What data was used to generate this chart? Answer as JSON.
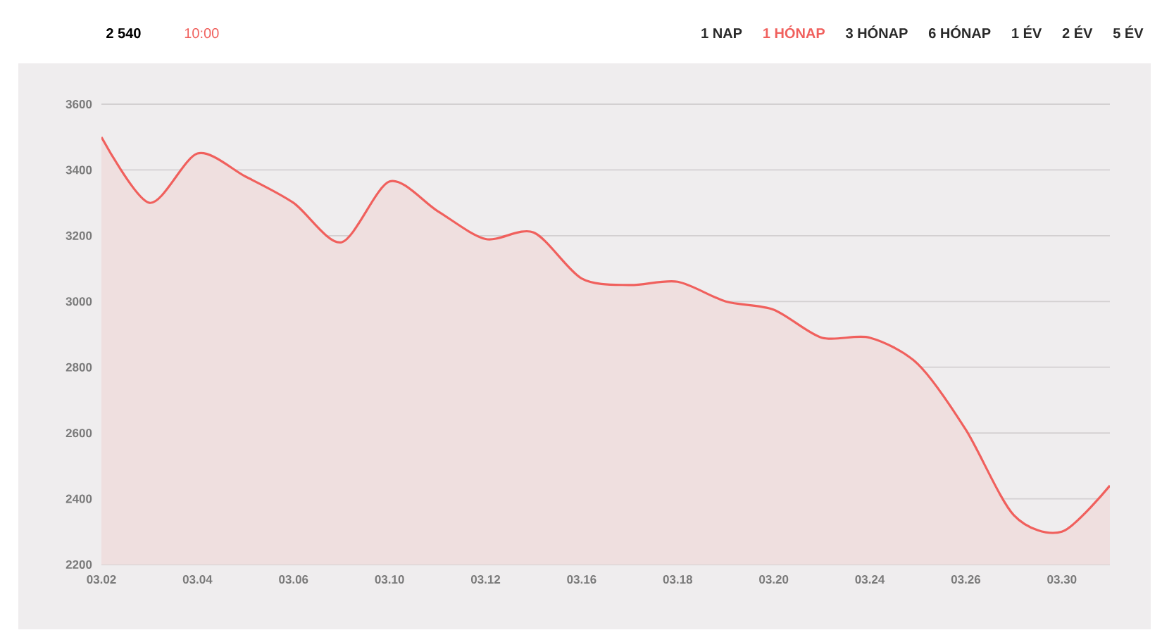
{
  "chart_data": {
    "type": "area",
    "categories": [
      "03.02",
      null,
      "03.04",
      null,
      "03.06",
      null,
      "03.10",
      null,
      "03.12",
      null,
      "03.16",
      null,
      "03.18",
      null,
      "03.20",
      null,
      "03.24",
      null,
      "03.26",
      null,
      "03.30",
      null
    ],
    "values": [
      3500,
      3300,
      3450,
      3380,
      3300,
      3180,
      3365,
      3275,
      3190,
      3210,
      3070,
      3050,
      3060,
      3000,
      2975,
      2890,
      2890,
      2810,
      2610,
      2350,
      2300,
      2440
    ],
    "color": "#f0605d",
    "ylim": [
      2200,
      3600
    ],
    "yticks": [
      2200,
      2400,
      2600,
      2800,
      3000,
      3200,
      3400,
      3600
    ],
    "grid": "y",
    "annotations": [
      "2 540",
      "10:00",
      "1 NAP",
      "1 HÓNAP",
      "3 HÓNAP",
      "6 HÓNAP",
      "1 ÉV",
      "2 ÉV",
      "5 ÉV"
    ]
  }
}
